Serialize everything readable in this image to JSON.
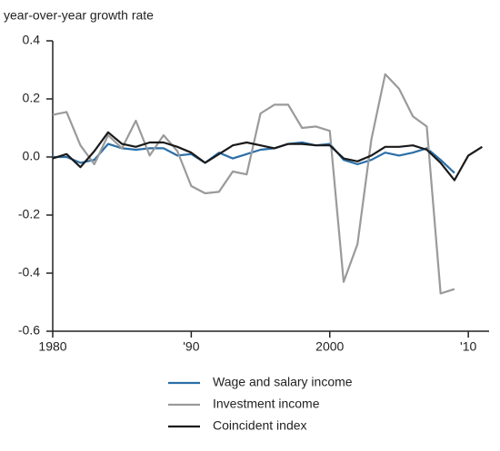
{
  "chart_data": {
    "type": "line",
    "y_label": "year-over-year growth rate",
    "x": [
      1980,
      1981,
      1982,
      1983,
      1984,
      1985,
      1986,
      1987,
      1988,
      1989,
      1990,
      1991,
      1992,
      1993,
      1994,
      1995,
      1996,
      1997,
      1998,
      1999,
      2000,
      2001,
      2002,
      2003,
      2004,
      2005,
      2006,
      2007,
      2008,
      2009,
      2010,
      2011
    ],
    "series": [
      {
        "name": "Wage and salary income",
        "color": "#2a6fa8",
        "values": [
          0.0,
          0.0,
          -0.02,
          -0.01,
          0.045,
          0.03,
          0.025,
          0.03,
          0.03,
          0.005,
          0.01,
          -0.02,
          0.015,
          -0.005,
          0.01,
          0.025,
          0.03,
          0.045,
          0.05,
          0.04,
          0.045,
          -0.01,
          -0.025,
          -0.01,
          0.015,
          0.005,
          0.015,
          0.03,
          -0.01,
          -0.055,
          null,
          null
        ]
      },
      {
        "name": "Investment income",
        "color": "#9a9a9a",
        "values": [
          0.145,
          0.155,
          0.04,
          -0.025,
          0.075,
          0.03,
          0.125,
          0.005,
          0.075,
          0.02,
          -0.1,
          -0.125,
          -0.12,
          -0.05,
          -0.06,
          0.15,
          0.18,
          0.18,
          0.1,
          0.105,
          0.09,
          -0.43,
          -0.3,
          0.06,
          0.285,
          0.235,
          0.14,
          0.105,
          -0.47,
          -0.455,
          null,
          null
        ]
      },
      {
        "name": "Coincident index",
        "color": "#1a1a1a",
        "values": [
          -0.005,
          0.01,
          -0.035,
          0.02,
          0.085,
          0.045,
          0.035,
          0.05,
          0.05,
          0.035,
          0.015,
          -0.02,
          0.01,
          0.04,
          0.05,
          0.04,
          0.03,
          0.045,
          0.045,
          0.04,
          0.04,
          -0.005,
          -0.015,
          0.005,
          0.035,
          0.035,
          0.04,
          0.025,
          -0.02,
          -0.08,
          0.005,
          0.035
        ]
      }
    ],
    "xlim": [
      1980,
      2011.5
    ],
    "xticks": [
      1980,
      {
        "value": 1990,
        "label": "'90"
      },
      2000,
      {
        "value": 2010,
        "label": "'10"
      }
    ],
    "ylim": [
      -0.6,
      0.4
    ],
    "yticks": [
      0.4,
      0.2,
      {
        "value": 0,
        "label": "0.0"
      },
      -0.2,
      -0.4,
      -0.6
    ],
    "grid": false
  }
}
